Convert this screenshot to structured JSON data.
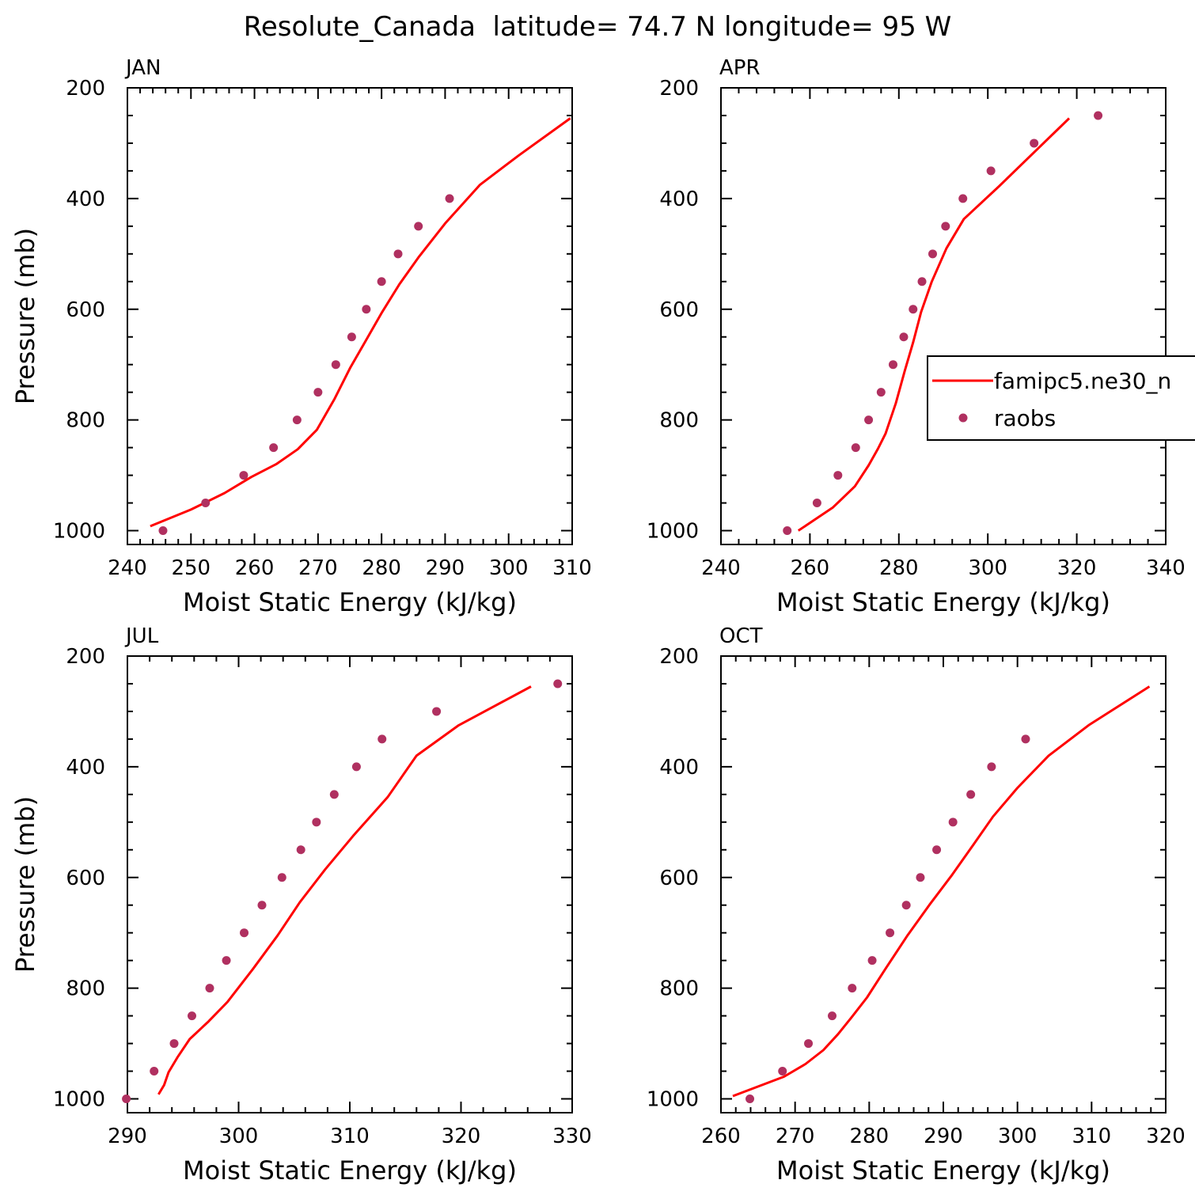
{
  "title": "Resolute_Canada  latitude= 74.7 N longitude= 95 W",
  "colors": {
    "model": "#ff0000",
    "obs": "#b03060"
  },
  "legend": {
    "location": "right side of APR panel, clipped at figure edge",
    "entries": [
      {
        "label": "famipc5.ne30_n",
        "style": "line"
      },
      {
        "label": "raobs",
        "style": "marker"
      }
    ]
  },
  "chart_data": [
    {
      "type": "line",
      "panel": "JAN",
      "xlabel": "Moist Static Energy (kJ/kg)",
      "ylabel": "Pressure (mb)",
      "xlim": [
        240,
        310
      ],
      "ylim": [
        1025,
        200
      ],
      "xticks": [
        240,
        250,
        260,
        270,
        280,
        290,
        300,
        310
      ],
      "yticks": [
        200,
        400,
        600,
        800,
        1000
      ],
      "series": [
        {
          "style": "line",
          "x": [
            243.6,
            250,
            255.3,
            259.5,
            263.4,
            266.8,
            269.8,
            272.6,
            275.1,
            277.6,
            280.1,
            282.8,
            285.9,
            290,
            295.5,
            301.6,
            309.7
          ],
          "y": [
            992,
            962,
            932,
            903,
            880,
            853,
            818,
            762,
            705,
            655,
            605,
            555,
            505,
            445,
            375,
            322,
            255
          ]
        },
        {
          "style": "scatter",
          "x": [
            245.6,
            252.3,
            258.3,
            263,
            266.7,
            270,
            272.8,
            275.3,
            277.6,
            280,
            282.6,
            285.8,
            290.7
          ],
          "y": [
            1000,
            950,
            900,
            850,
            800,
            750,
            700,
            650,
            600,
            550,
            500,
            450,
            400
          ]
        }
      ]
    },
    {
      "type": "line",
      "panel": "APR",
      "xlabel": "Moist Static Energy (kJ/kg)",
      "ylabel": "",
      "xlim": [
        240,
        340
      ],
      "ylim": [
        1025,
        200
      ],
      "xticks": [
        240,
        260,
        280,
        300,
        320,
        340
      ],
      "yticks": [
        200,
        400,
        600,
        800,
        1000
      ],
      "series": [
        {
          "style": "line",
          "x": [
            257.4,
            265.2,
            270.1,
            273.2,
            275.3,
            277,
            279.3,
            281.3,
            283.2,
            285,
            287.4,
            290.7,
            294.6,
            302.5,
            309.3,
            318.3
          ],
          "y": [
            1000,
            958,
            920,
            882,
            852,
            825,
            770,
            712,
            660,
            605,
            550,
            490,
            437,
            378,
            325,
            255
          ]
        },
        {
          "style": "scatter",
          "x": [
            254.9,
            261.6,
            266.3,
            270.3,
            273.2,
            276,
            278.7,
            281.1,
            283.2,
            285.2,
            287.6,
            290.5,
            294.4,
            300.7,
            310.4,
            324.8
          ],
          "y": [
            1000,
            950,
            900,
            850,
            800,
            750,
            700,
            650,
            600,
            550,
            500,
            450,
            400,
            350,
            300,
            250
          ]
        }
      ]
    },
    {
      "type": "line",
      "panel": "JUL",
      "xlabel": "Moist Static Energy (kJ/kg)",
      "ylabel": "Pressure (mb)",
      "xlim": [
        290,
        330
      ],
      "ylim": [
        1025,
        200
      ],
      "xticks": [
        290,
        300,
        310,
        320,
        330
      ],
      "yticks": [
        200,
        400,
        600,
        800,
        1000
      ],
      "series": [
        {
          "style": "line",
          "x": [
            292.8,
            293.3,
            293.7,
            294.5,
            295.6,
            297.3,
            299,
            301.3,
            303.5,
            305.5,
            307.8,
            310.3,
            313.4,
            316,
            319.8,
            326.3
          ],
          "y": [
            992,
            975,
            952,
            925,
            892,
            860,
            825,
            765,
            705,
            645,
            585,
            525,
            455,
            380,
            325,
            255
          ]
        },
        {
          "style": "scatter",
          "x": [
            289.9,
            292.4,
            294.2,
            295.8,
            297.4,
            298.9,
            300.5,
            302.1,
            303.9,
            305.6,
            307,
            308.6,
            310.6,
            312.9,
            317.8,
            328.7
          ],
          "y": [
            1000,
            950,
            900,
            850,
            800,
            750,
            700,
            650,
            600,
            550,
            500,
            450,
            400,
            350,
            300,
            250
          ]
        }
      ]
    },
    {
      "type": "line",
      "panel": "OCT",
      "xlabel": "Moist Static Energy (kJ/kg)",
      "ylabel": "",
      "xlim": [
        260,
        320
      ],
      "ylim": [
        1025,
        200
      ],
      "xticks": [
        260,
        270,
        280,
        290,
        300,
        310,
        320
      ],
      "yticks": [
        200,
        400,
        600,
        800,
        1000
      ],
      "series": [
        {
          "style": "line",
          "x": [
            261.6,
            268.5,
            271.4,
            273.8,
            275.8,
            277.6,
            279.7,
            282.2,
            285.1,
            288.1,
            291.2,
            294.1,
            296.7,
            300,
            304.2,
            309.6,
            317.8
          ],
          "y": [
            995,
            960,
            937,
            912,
            883,
            853,
            817,
            765,
            706,
            650,
            595,
            540,
            490,
            438,
            380,
            325,
            255
          ]
        },
        {
          "style": "scatter",
          "x": [
            263.9,
            268.3,
            271.8,
            275,
            277.7,
            280.4,
            282.8,
            285,
            286.9,
            289.1,
            291.3,
            293.7,
            296.5,
            301.1
          ],
          "y": [
            1000,
            950,
            900,
            850,
            800,
            750,
            700,
            650,
            600,
            550,
            500,
            450,
            400,
            350
          ]
        }
      ]
    }
  ]
}
